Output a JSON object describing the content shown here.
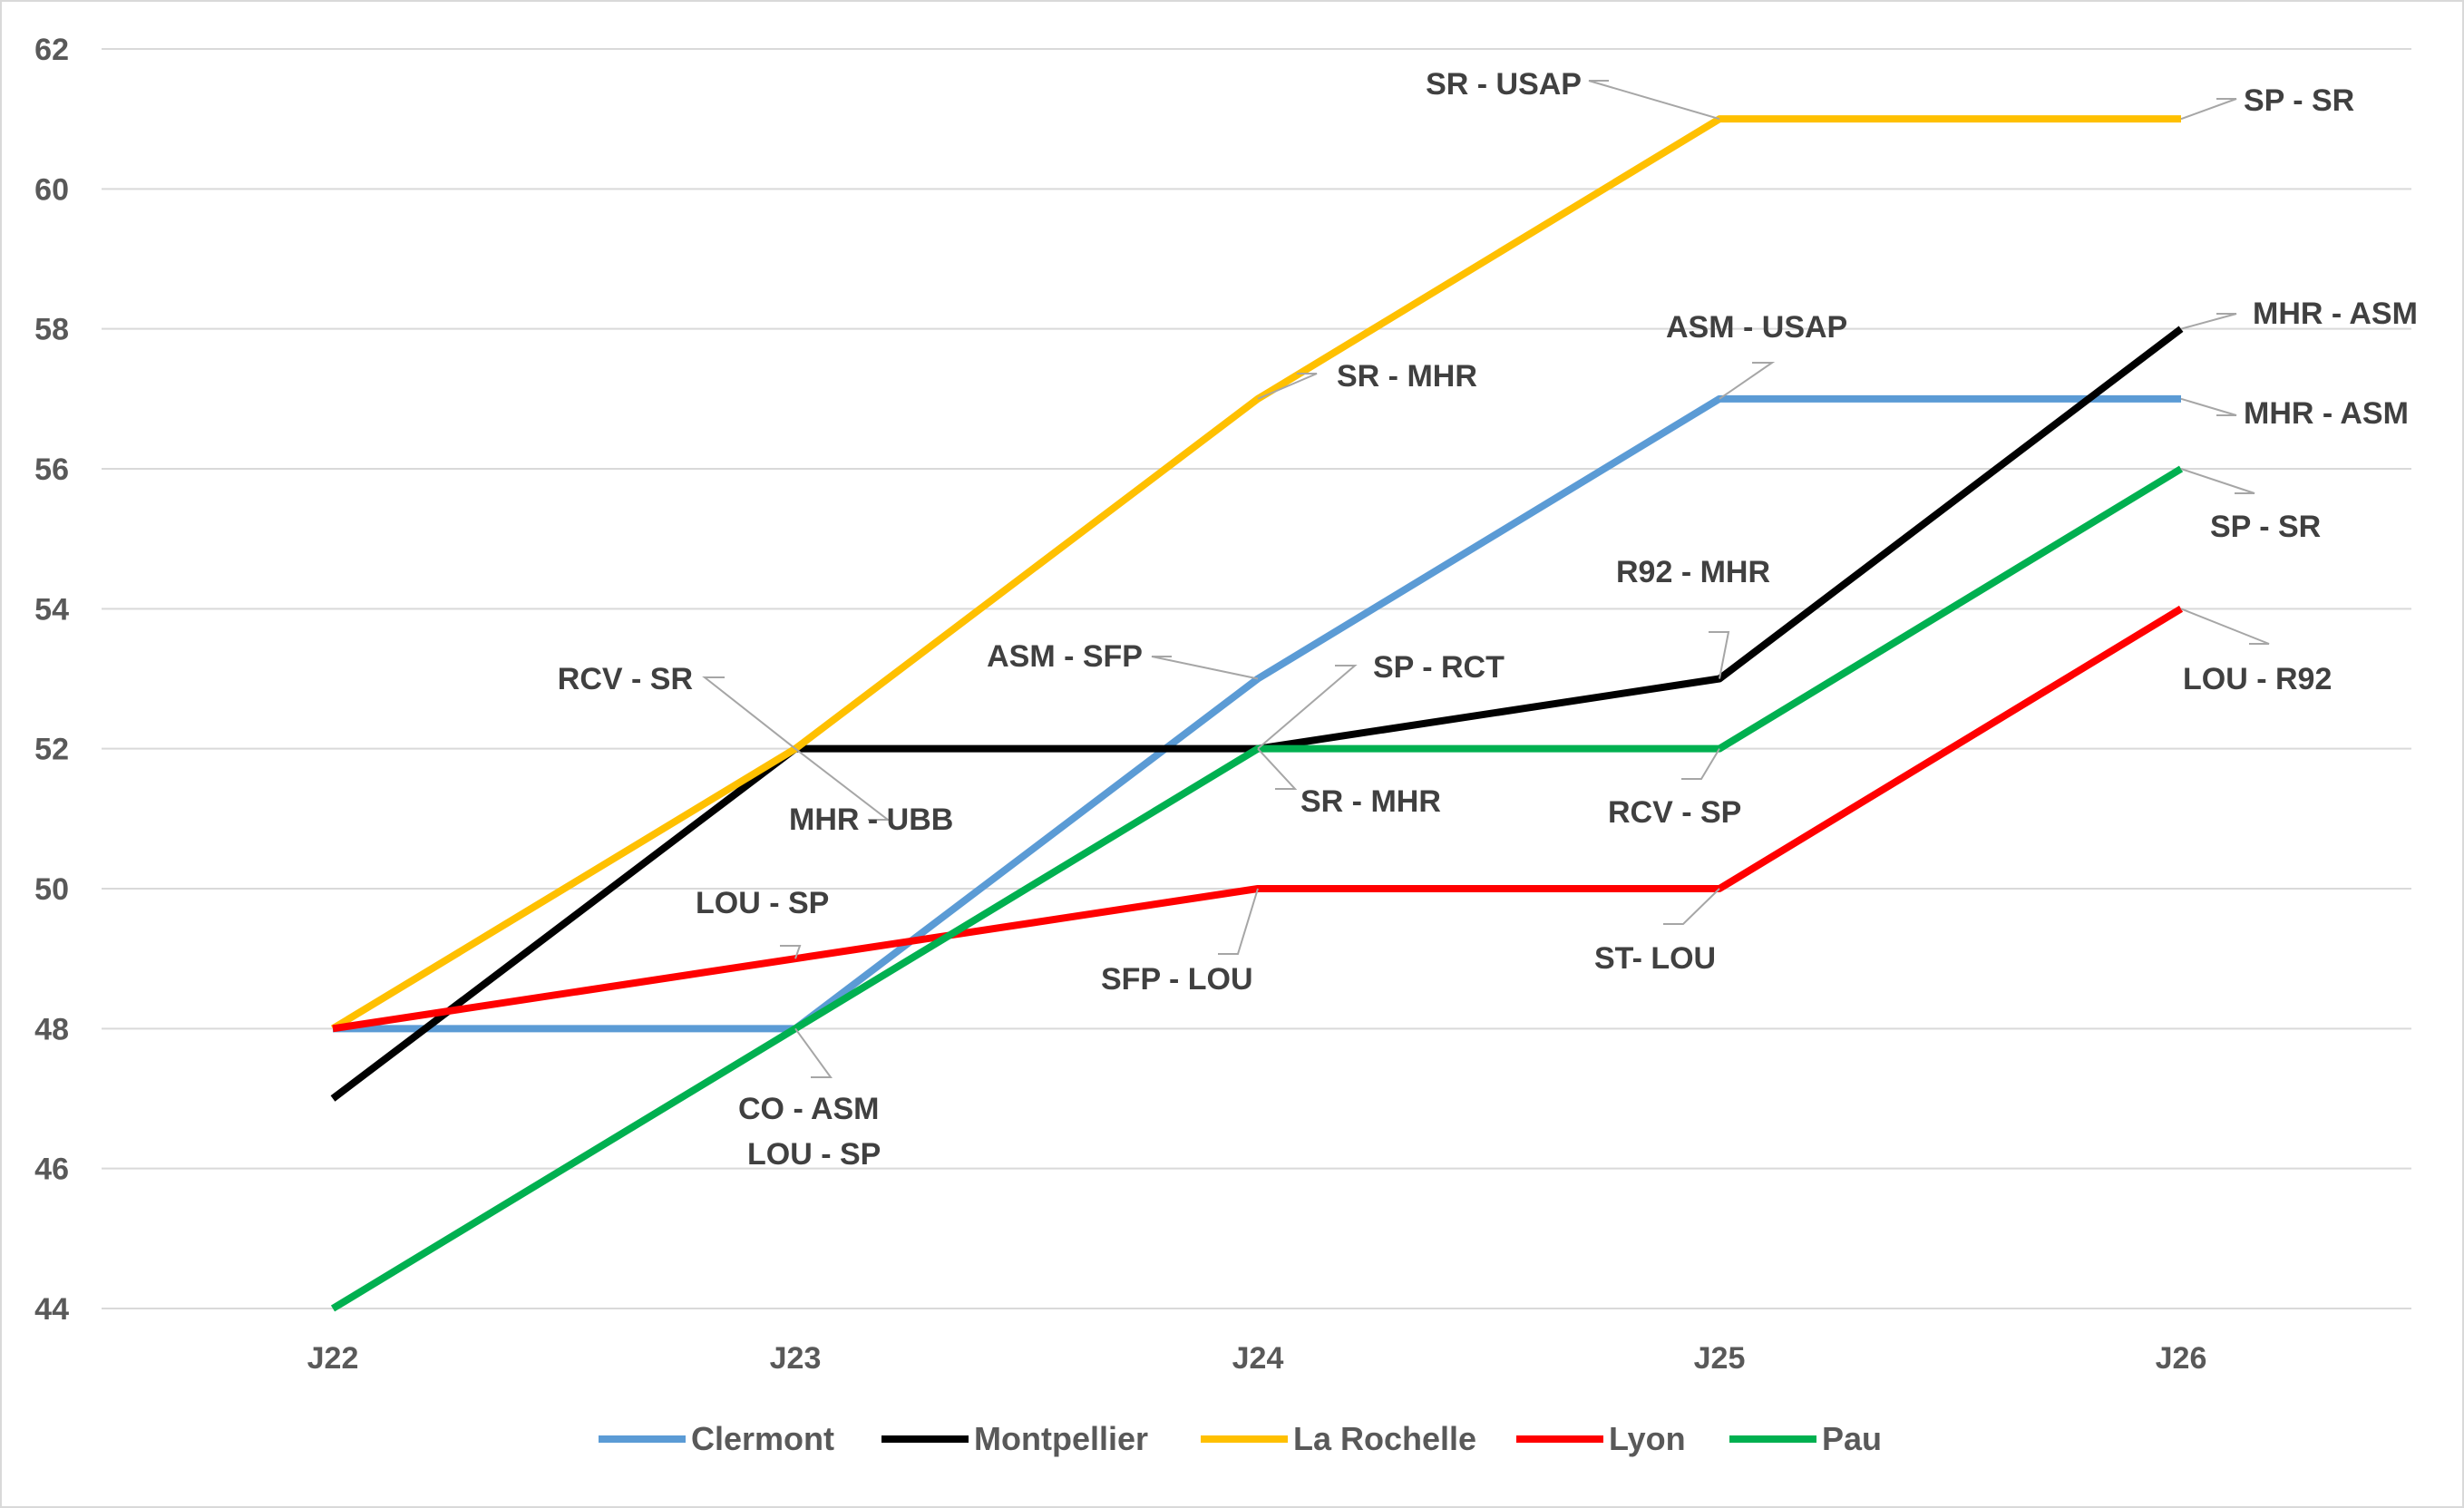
{
  "chart_data": {
    "type": "line",
    "categories": [
      "J22",
      "J23",
      "J24",
      "J25",
      "J26"
    ],
    "ylim": [
      44,
      62
    ],
    "yticks": [
      44,
      46,
      48,
      50,
      52,
      54,
      56,
      58,
      60,
      62
    ],
    "grid": true,
    "legend_position": "bottom",
    "series": [
      {
        "name": "Clermont",
        "color": "#5b9bd5",
        "values": [
          48,
          48,
          53,
          57,
          57
        ]
      },
      {
        "name": "Montpellier",
        "color": "#000000",
        "values": [
          47,
          52,
          52,
          53,
          58
        ]
      },
      {
        "name": "La Rochelle",
        "color": "#ffc000",
        "values": [
          48,
          52,
          57,
          61,
          61
        ]
      },
      {
        "name": "Lyon",
        "color": "#ff0000",
        "values": [
          48,
          49,
          50,
          50,
          54
        ]
      },
      {
        "name": "Pau",
        "color": "#00b050",
        "values": [
          44,
          48,
          52,
          52,
          56
        ]
      }
    ],
    "annotations": [
      {
        "text": "RCV - SR",
        "point": [
          1,
          52
        ]
      },
      {
        "text": "MHR - UBB",
        "point": [
          1,
          52
        ]
      },
      {
        "text": "LOU - SP",
        "point": [
          1,
          49
        ]
      },
      {
        "text": "CO - ASM",
        "point": [
          1,
          48
        ]
      },
      {
        "text": "LOU - SP",
        "point": [
          1,
          48
        ]
      },
      {
        "text": "SR - MHR",
        "point": [
          2,
          57
        ]
      },
      {
        "text": "ASM - SFP",
        "point": [
          2,
          53
        ]
      },
      {
        "text": "SP - RCT",
        "point": [
          2,
          52
        ]
      },
      {
        "text": "SR - MHR",
        "point": [
          2,
          52
        ]
      },
      {
        "text": "SFP - LOU",
        "point": [
          2,
          50
        ]
      },
      {
        "text": "SR - USAP",
        "point": [
          3,
          61
        ]
      },
      {
        "text": "ASM - USAP",
        "point": [
          3,
          57
        ]
      },
      {
        "text": "R92 - MHR",
        "point": [
          3,
          53
        ]
      },
      {
        "text": "RCV - SP",
        "point": [
          3,
          52
        ]
      },
      {
        "text": "ST- LOU",
        "point": [
          3,
          50
        ]
      },
      {
        "text": "SP - SR",
        "point": [
          4,
          61
        ]
      },
      {
        "text": "MHR - ASM",
        "point": [
          4,
          58
        ]
      },
      {
        "text": "MHR - ASM",
        "point": [
          4,
          57
        ]
      },
      {
        "text": "SP - SR",
        "point": [
          4,
          56
        ]
      },
      {
        "text": "LOU - R92",
        "point": [
          4,
          54
        ]
      }
    ]
  }
}
